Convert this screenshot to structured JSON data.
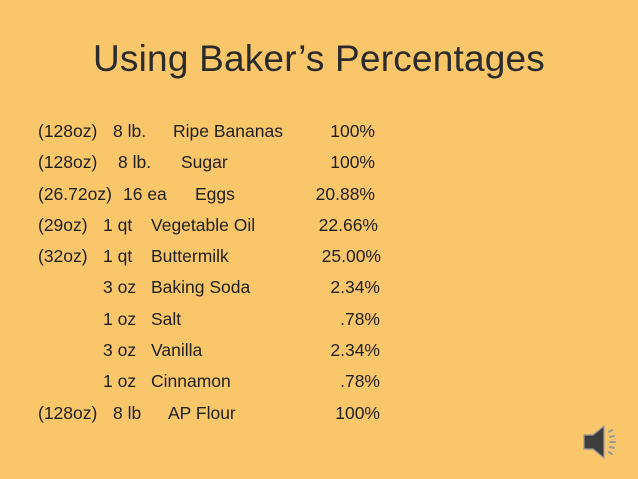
{
  "slide": {
    "title": "Using Baker’s Percentages",
    "rows": [
      {
        "weight": "(128oz)",
        "qty": "8 lb.",
        "name": "Ripe Bananas",
        "pct": "100%"
      },
      {
        "weight": "(128oz)",
        "qty": "8 lb.",
        "name": "Sugar",
        "pct": "100%"
      },
      {
        "weight": "(26.72oz)",
        "qty": "16 ea",
        "name": "Eggs",
        "pct": "20.88%"
      },
      {
        "weight": "(29oz)",
        "qty": "1 qt",
        "name": "Vegetable Oil",
        "pct": "22.66%"
      },
      {
        "weight": "(32oz)",
        "qty": "1 qt",
        "name": "Buttermilk",
        "pct": "25.00%"
      },
      {
        "weight": "",
        "qty": "3 oz",
        "name": "Baking Soda",
        "pct": "2.34%"
      },
      {
        "weight": "",
        "qty": "1 oz",
        "name": "Salt",
        "pct": ".78%"
      },
      {
        "weight": "",
        "qty": "3 oz",
        "name": "Vanilla",
        "pct": "2.34%"
      },
      {
        "weight": "",
        "qty": "1 oz",
        "name": "Cinnamon",
        "pct": ".78%"
      },
      {
        "weight": "(128oz)",
        "qty": "8 lb",
        "name": "AP Flour",
        "pct": "100%"
      }
    ],
    "speaker_icon": "speaker-icon",
    "colors": {
      "background": "#f9c66a",
      "text": "#1f1f1f"
    }
  }
}
